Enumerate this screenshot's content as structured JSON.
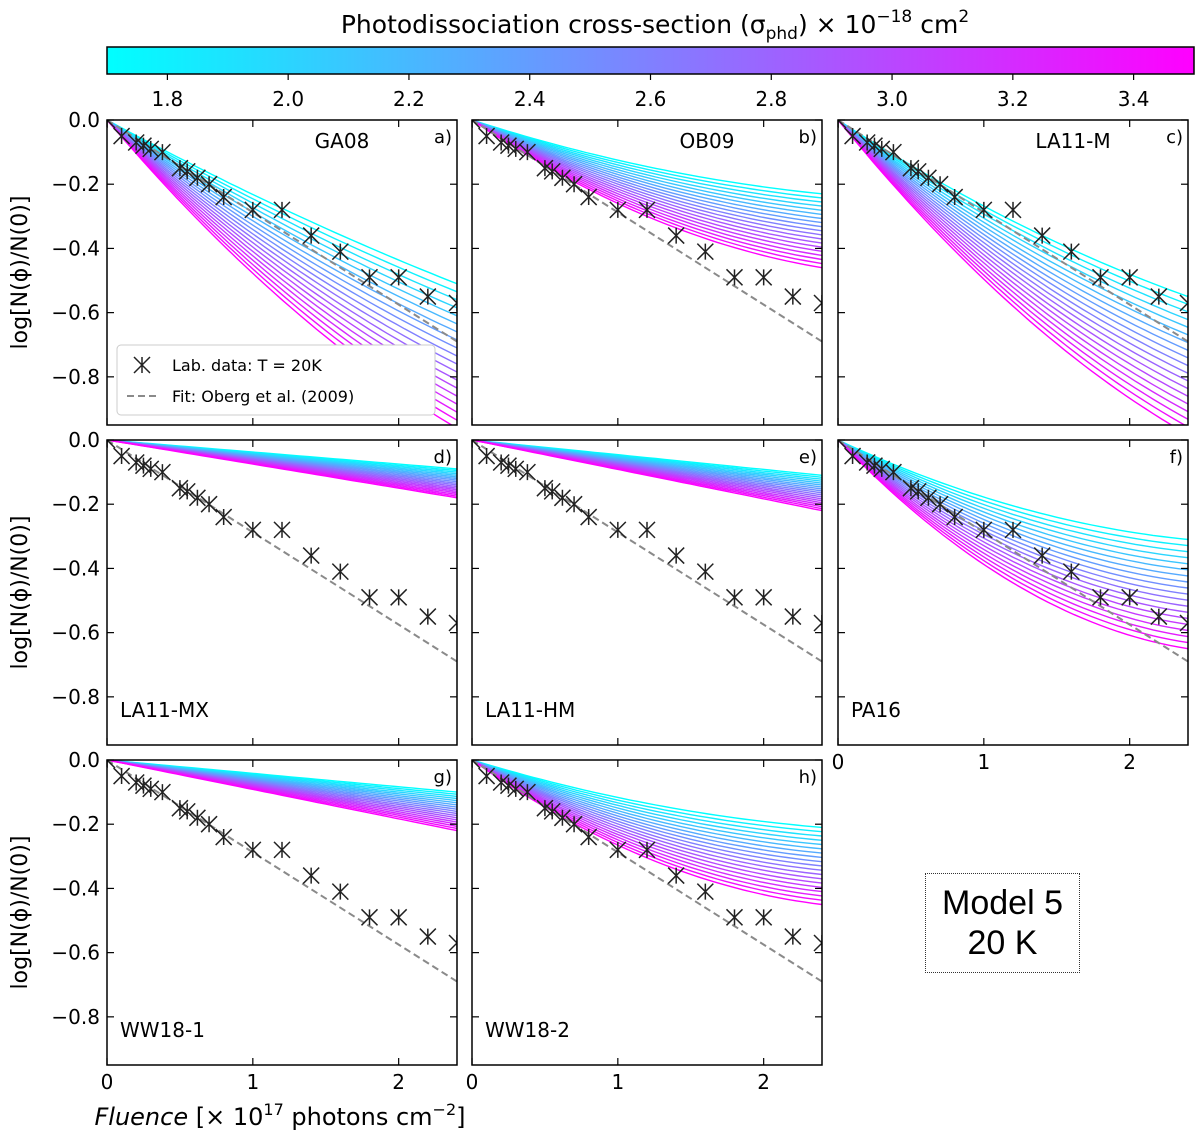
{
  "colorbar": {
    "title": "Photodissociation cross-section (σ",
    "title_sub": "phd",
    "title_mid": ") × 10",
    "title_exp": "−18",
    "title_unit": " cm",
    "title_unit_exp": "2",
    "ticks": [
      "1.8",
      "2.0",
      "2.2",
      "2.4",
      "2.6",
      "2.8",
      "3.0",
      "3.2",
      "3.4"
    ],
    "range": [
      1.7,
      3.5
    ],
    "colors": {
      "low": "#00ffff",
      "high": "#ff00ff"
    }
  },
  "axes": {
    "ylabel": "log[N(ϕ)/N(0)]",
    "xlabel_italic": "Fluence",
    "xlabel_rest_1": " [× 10",
    "xlabel_exp": "17",
    "xlabel_rest_2": " photons cm",
    "xlabel_exp2": "−2",
    "xlabel_end": "]",
    "yticks": [
      "0.0",
      "−0.2",
      "−0.4",
      "−0.6",
      "−0.8"
    ],
    "xticks": [
      "0",
      "1",
      "2"
    ]
  },
  "legend": {
    "data_label": "Lab. data: T = 20K",
    "fit_label": "Fit: Oberg et al. (2009)"
  },
  "model": {
    "line1": "Model 5",
    "line2": "20 K"
  },
  "chart_data": {
    "type": "line",
    "xlim": [
      0,
      2.4
    ],
    "ylim": [
      -0.95,
      0.0
    ],
    "lab_data": {
      "x": [
        0.0,
        0.1,
        0.2,
        0.25,
        0.3,
        0.38,
        0.5,
        0.55,
        0.62,
        0.7,
        0.8,
        1.0,
        1.2,
        1.4,
        1.6,
        1.8,
        2.0,
        2.2,
        2.4
      ],
      "y": [
        0.0,
        -0.05,
        -0.07,
        -0.08,
        -0.09,
        -0.1,
        -0.15,
        -0.16,
        -0.18,
        -0.2,
        -0.24,
        -0.28,
        -0.28,
        -0.36,
        -0.41,
        -0.49,
        -0.49,
        -0.55,
        -0.57
      ]
    },
    "fit": {
      "x": [
        0.0,
        2.4
      ],
      "y": [
        0.0,
        -0.69
      ]
    },
    "sigma_values": [
      1.7,
      1.8,
      1.9,
      2.0,
      2.1,
      2.2,
      2.3,
      2.4,
      2.5,
      2.6,
      2.7,
      2.8,
      2.9,
      3.0,
      3.1,
      3.2,
      3.3,
      3.4,
      3.5
    ],
    "panels": [
      {
        "name": "GA08",
        "tag": "a)",
        "label_pos": "top",
        "end_low": -0.51,
        "end_high": -0.96,
        "curv_low": 0.02,
        "curv_high": 0.08
      },
      {
        "name": "OB09",
        "tag": "b)",
        "label_pos": "top",
        "end_low": -0.23,
        "end_high": -0.46,
        "curv_low": 0.03,
        "curv_high": 0.07
      },
      {
        "name": "LA11-M",
        "tag": "c)",
        "label_pos": "top",
        "end_low": -0.55,
        "end_high": -0.98,
        "curv_low": 0.04,
        "curv_high": 0.09
      },
      {
        "name": "LA11-MX",
        "tag": "d)",
        "label_pos": "bottom",
        "end_low": -0.09,
        "end_high": -0.18,
        "curv_low": 0.0,
        "curv_high": 0.0
      },
      {
        "name": "LA11-HM",
        "tag": "e)",
        "label_pos": "bottom",
        "end_low": -0.11,
        "end_high": -0.22,
        "curv_low": 0.0,
        "curv_high": 0.0
      },
      {
        "name": "PA16",
        "tag": "f)",
        "label_pos": "bottom",
        "end_low": -0.31,
        "end_high": -0.65,
        "curv_low": 0.05,
        "curv_high": 0.12
      },
      {
        "name": "WW18-1",
        "tag": "g)",
        "label_pos": "bottom",
        "end_low": -0.1,
        "end_high": -0.22,
        "curv_low": 0.0,
        "curv_high": 0.0
      },
      {
        "name": "WW18-2",
        "tag": "h)",
        "label_pos": "bottom",
        "end_low": -0.21,
        "end_high": -0.45,
        "curv_low": 0.03,
        "curv_high": 0.08
      }
    ]
  }
}
